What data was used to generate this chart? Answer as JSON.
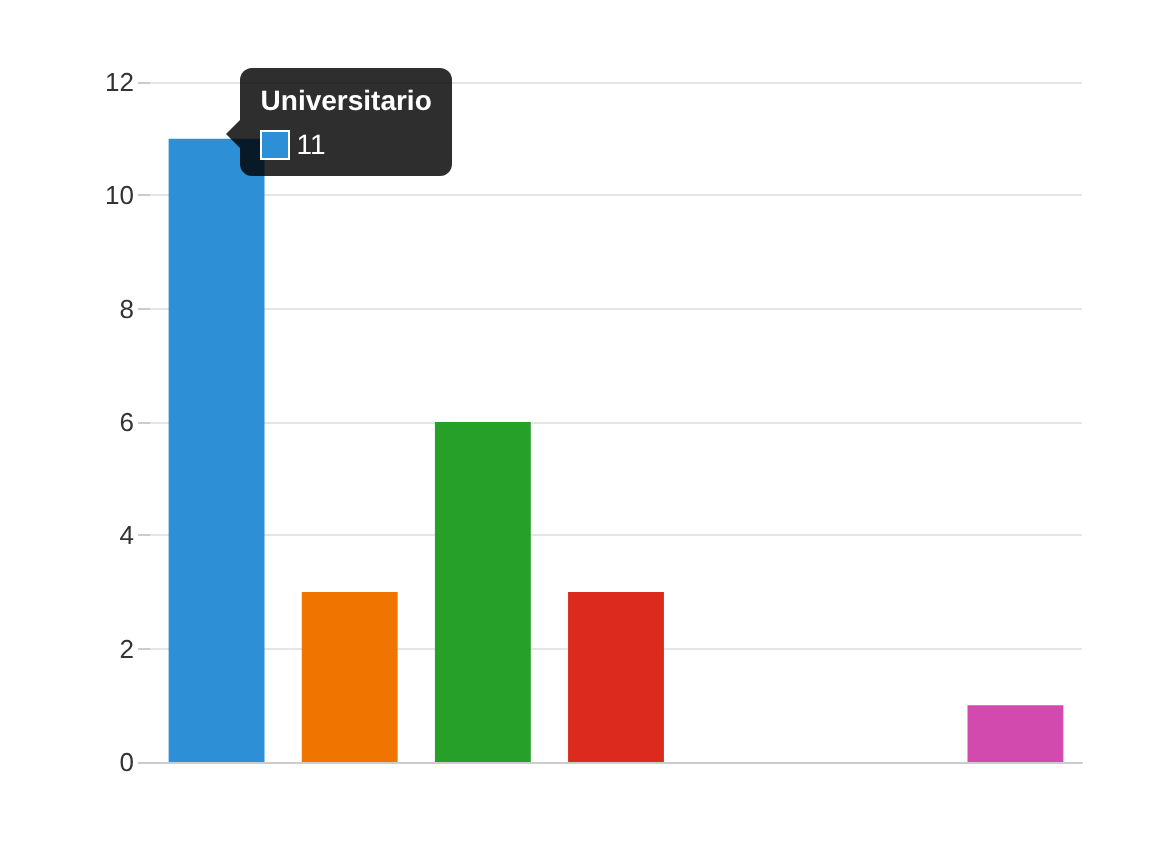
{
  "chart_data": {
    "type": "bar",
    "categories": [
      null,
      null,
      null,
      null,
      null,
      null,
      null
    ],
    "values": [
      11,
      3,
      6,
      3,
      null,
      null,
      1
    ],
    "colors": [
      "#2d8fd5",
      "#f07400",
      "#26a029",
      "#dc2a1e",
      null,
      null,
      "#d24aae"
    ],
    "annotations": [
      "Universitario",
      "11"
    ],
    "ylim": [
      0,
      12
    ],
    "yticks": [
      0,
      2,
      4,
      6,
      8,
      10,
      12
    ],
    "grid": "y"
  }
}
